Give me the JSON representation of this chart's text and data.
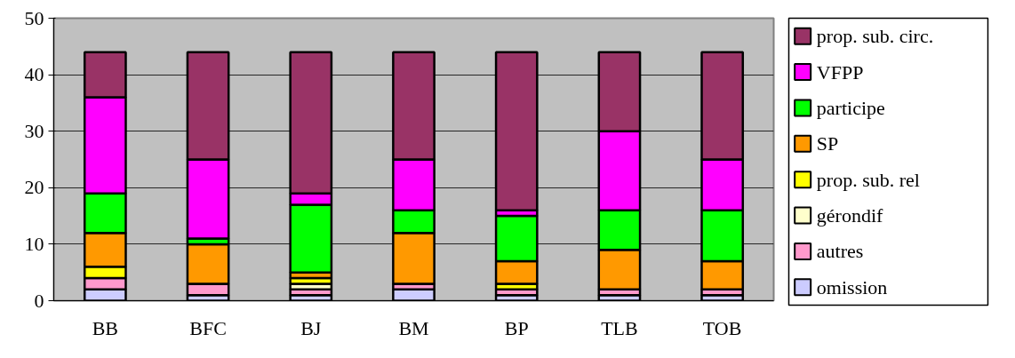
{
  "chart_data": {
    "type": "bar",
    "stacked": true,
    "categories": [
      "BB",
      "BFC",
      "BJ",
      "BM",
      "BP",
      "TLB",
      "TOB"
    ],
    "series": [
      {
        "name": "omission",
        "color": "#ccccff",
        "values": [
          2,
          1,
          1,
          2,
          1,
          1,
          1
        ]
      },
      {
        "name": "autres",
        "color": "#ff99cc",
        "values": [
          2,
          2,
          1,
          1,
          1,
          1,
          1
        ]
      },
      {
        "name": "gérondif",
        "color": "#ffffcc",
        "values": [
          0,
          0,
          1,
          0,
          0,
          0,
          0
        ]
      },
      {
        "name": "prop. sub. rel",
        "color": "#ffff00",
        "values": [
          2,
          0,
          1,
          0,
          1,
          0,
          0
        ]
      },
      {
        "name": "SP",
        "color": "#ff9900",
        "values": [
          6,
          7,
          1,
          9,
          4,
          7,
          5
        ]
      },
      {
        "name": "participe",
        "color": "#00ff00",
        "values": [
          7,
          1,
          12,
          4,
          8,
          7,
          9
        ]
      },
      {
        "name": "VFPP",
        "color": "#ff00ff",
        "values": [
          17,
          14,
          2,
          9,
          1,
          14,
          9
        ]
      },
      {
        "name": "prop. sub. circ.",
        "color": "#993366",
        "values": [
          8,
          19,
          25,
          19,
          28,
          14,
          19
        ]
      }
    ],
    "ylim": [
      0,
      50
    ],
    "yticks": [
      0,
      10,
      20,
      30,
      40,
      50
    ],
    "grid": "y",
    "legend": "right"
  }
}
